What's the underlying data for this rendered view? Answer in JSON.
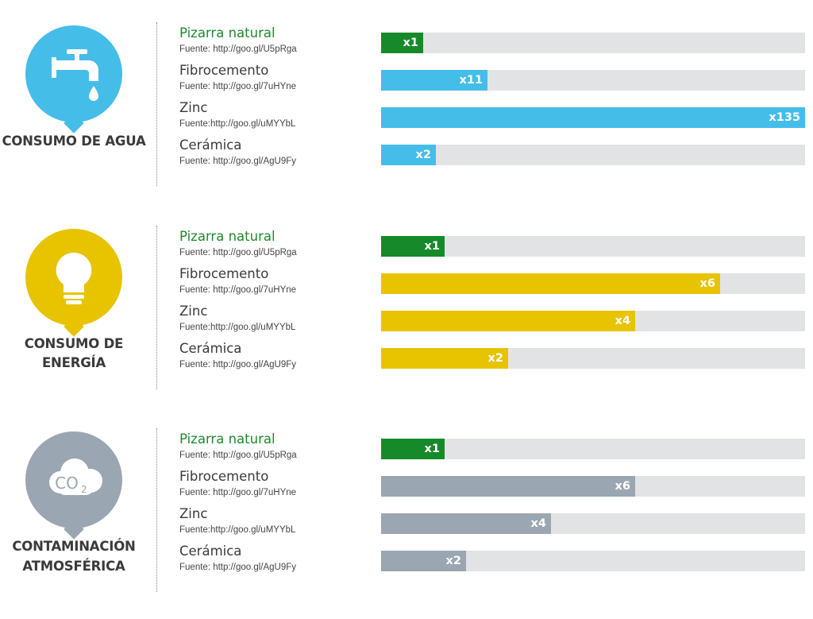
{
  "colors": {
    "green": "#168a2a",
    "water": "#45bde9",
    "energy": "#e8c300",
    "co2": "#9aa6b2",
    "track": "#e2e3e5"
  },
  "sections": [
    {
      "label_lines": [
        "CONSUMO DE AGUA"
      ],
      "icon": "faucet-icon",
      "color": "#45bde9"
    },
    {
      "label_lines": [
        "CONSUMO DE ENERGÍA"
      ],
      "icon": "lightbulb-icon",
      "color": "#e8c300"
    },
    {
      "label_lines": [
        "CONTAMINACIÓN",
        "ATMOSFÉRICA"
      ],
      "icon": "co2-cloud-icon",
      "icon_text": "CO",
      "icon_sub": "2",
      "color": "#9aa6b2"
    }
  ],
  "materials": [
    {
      "name": "Pizarra natural",
      "source": "Fuente: http://goo.gl/U5pRga"
    },
    {
      "name": "Fibrocemento",
      "source": "Fuente: http://goo.gl/7uHYne"
    },
    {
      "name": "Zinc",
      "source": "Fuente:http://goo.gl/uMYYbL"
    },
    {
      "name": "Cerámica",
      "source": "Fuente: http://goo.gl/AgU9Fy"
    }
  ],
  "chart_data": [
    {
      "type": "bar",
      "title": "CONSUMO DE AGUA",
      "categories": [
        "Pizarra natural",
        "Fibrocemento",
        "Zinc",
        "Cerámica"
      ],
      "values": [
        1,
        11,
        135,
        2
      ],
      "labels": [
        "x1",
        "x11",
        "x135",
        "x2"
      ],
      "fill_fraction": [
        0.1,
        0.25,
        1.0,
        0.13
      ]
    },
    {
      "type": "bar",
      "title": "CONSUMO DE ENERGÍA",
      "categories": [
        "Pizarra natural",
        "Fibrocemento",
        "Zinc",
        "Cerámica"
      ],
      "values": [
        1,
        6,
        4,
        2
      ],
      "labels": [
        "x1",
        "x6",
        "x4",
        "x2"
      ],
      "fill_fraction": [
        0.15,
        0.8,
        0.6,
        0.3
      ]
    },
    {
      "type": "bar",
      "title": "CONTAMINACIÓN ATMOSFÉRICA",
      "categories": [
        "Pizarra natural",
        "Fibrocemento",
        "Zinc",
        "Cerámica"
      ],
      "values": [
        1,
        6,
        4,
        2
      ],
      "labels": [
        "x1",
        "x6",
        "x4",
        "x2"
      ],
      "fill_fraction": [
        0.15,
        0.6,
        0.4,
        0.2
      ]
    }
  ]
}
